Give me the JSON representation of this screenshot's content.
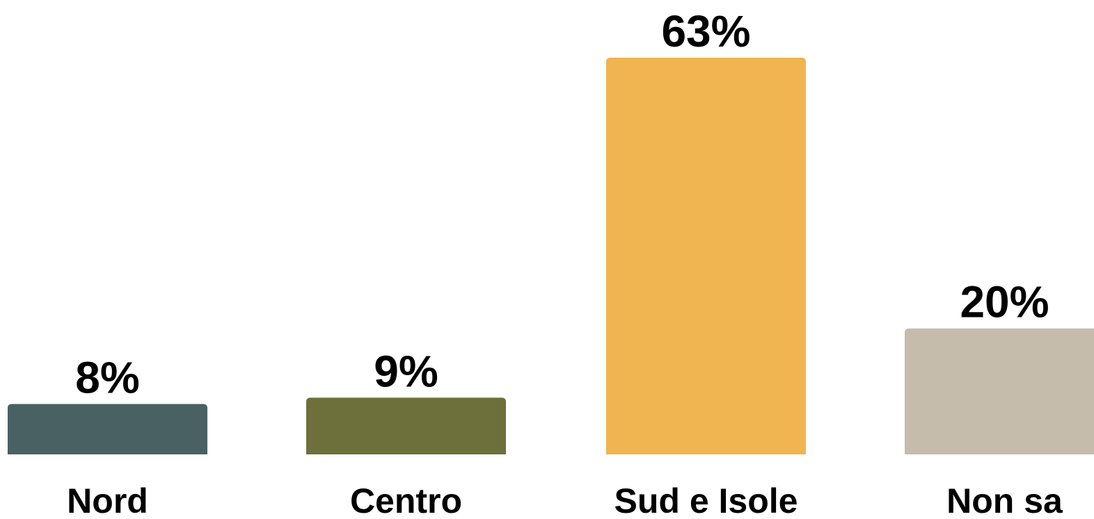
{
  "chart_data": {
    "type": "bar",
    "categories": [
      "Nord",
      "Centro",
      "Sud e Isole",
      "Non sa"
    ],
    "values": [
      8,
      9,
      63,
      20
    ],
    "value_labels": [
      "8%",
      "9%",
      "63%",
      "20%"
    ],
    "colors": [
      "#4a6163",
      "#6e703b",
      "#f0b450",
      "#c6bcab"
    ],
    "title": "",
    "xlabel": "",
    "ylabel": "",
    "ylim": [
      0,
      63
    ],
    "grid": false,
    "legend": "none"
  }
}
